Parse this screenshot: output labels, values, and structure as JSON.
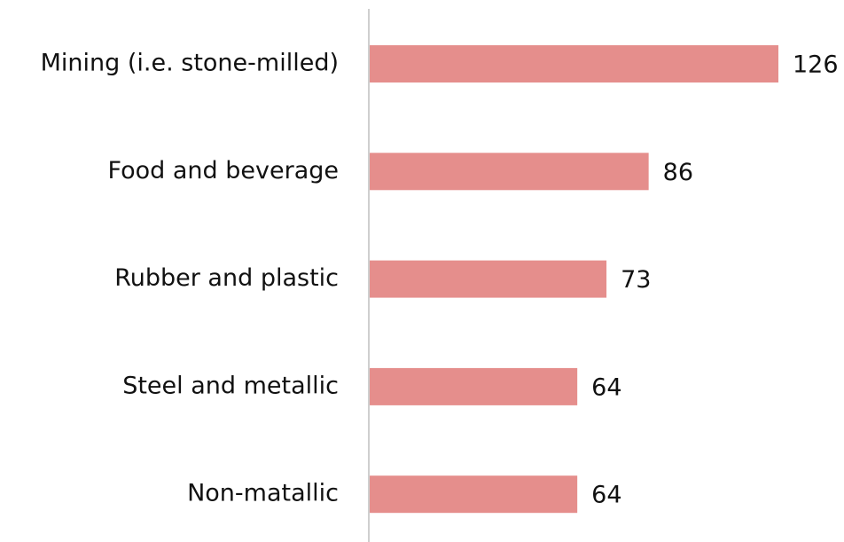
{
  "chart_data": {
    "type": "bar",
    "orientation": "horizontal",
    "categories": [
      "Mining (i.e. stone-milled)",
      "Food and beverage",
      "Rubber and plastic",
      "Steel and metallic",
      "Non-matallic"
    ],
    "values": [
      126,
      86,
      73,
      64,
      64
    ],
    "color": "#e58e8c"
  }
}
